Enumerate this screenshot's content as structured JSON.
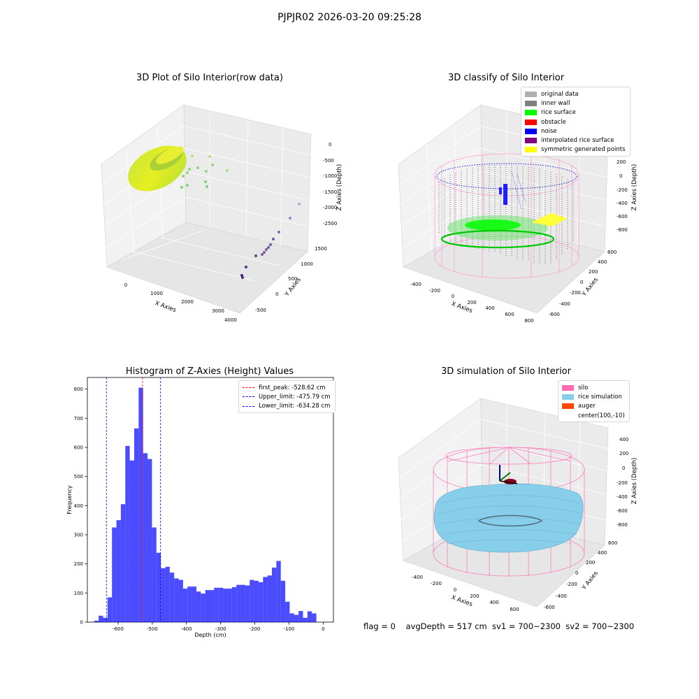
{
  "suptitle": "PJPJR02 2026-03-20 09:25:28",
  "panels": {
    "raw": {
      "title": "3D Plot of Silo Interior(row data)",
      "xlabel": "X Axies",
      "ylabel": "Y Axies",
      "zlabel": "Z Axies (Depth)",
      "x_ticks": [
        "0",
        "1000",
        "2000",
        "3000",
        "4000"
      ],
      "y_ticks": [
        "-500",
        "0",
        "500",
        "1000",
        "1500"
      ],
      "z_ticks": [
        "0",
        "-500",
        "-1000",
        "-1500",
        "-2000",
        "-2500"
      ]
    },
    "classify": {
      "title": "3D classify of Silo Interior",
      "xlabel": "X Axies",
      "ylabel": "Y Axies",
      "zlabel": "Z Axies (Depth)",
      "x_ticks": [
        "-400",
        "-200",
        "0",
        "200",
        "400",
        "600",
        "800"
      ],
      "y_ticks": [
        "-600",
        "-400",
        "-200",
        "0",
        "200",
        "400",
        "600"
      ],
      "z_ticks": [
        "200",
        "0",
        "-200",
        "-400",
        "-600",
        "-800"
      ],
      "legend": [
        {
          "label": "original data",
          "color": "#b0b0b0"
        },
        {
          "label": "inner wall",
          "color": "#808080"
        },
        {
          "label": "rice surface",
          "color": "#00ff00"
        },
        {
          "label": "obstacle",
          "color": "#ff0000"
        },
        {
          "label": "noise",
          "color": "#0000ff"
        },
        {
          "label": "interpolated rice surface",
          "color": "#800080"
        },
        {
          "label": "symmetric generated points",
          "color": "#ffff00"
        }
      ]
    },
    "simulation": {
      "title": "3D simulation of Silo Interior",
      "xlabel": "X Axies",
      "ylabel": "Y Axies",
      "zlabel": "Z Axies (Depth)",
      "x_ticks": [
        "-400",
        "-200",
        "0",
        "200",
        "400",
        "600"
      ],
      "y_ticks": [
        "-600",
        "-400",
        "-200",
        "0",
        "200",
        "400",
        "600"
      ],
      "z_ticks": [
        "400",
        "200",
        "0",
        "-200",
        "-400",
        "-600",
        "-800"
      ],
      "legend": [
        {
          "label": "silo",
          "color": "#ff69b4"
        },
        {
          "label": "rice simulation",
          "color": "#87ceeb"
        },
        {
          "label": "auger",
          "color": "#ff4500"
        },
        {
          "label": "center(100,-10)",
          "color": ""
        }
      ]
    }
  },
  "chart_data": {
    "type": "bar",
    "title": "Histogram of Z-Axies (Height) Values",
    "xlabel": "Depth (cm)",
    "ylabel": "Frequency",
    "xlim": [
      -690,
      30
    ],
    "ylim": [
      0,
      840
    ],
    "x_ticks": [
      -600,
      -500,
      -400,
      -300,
      -200,
      -100,
      0
    ],
    "y_ticks": [
      0,
      100,
      200,
      300,
      400,
      500,
      600,
      700,
      800
    ],
    "bar_color": "#0000ff",
    "bin_edges": [
      -670,
      -657,
      -644,
      -631,
      -618,
      -605,
      -592,
      -579,
      -566,
      -553,
      -540,
      -527,
      -514,
      -501,
      -488,
      -475,
      -462,
      -449,
      -436,
      -423,
      -410,
      -397,
      -384,
      -371,
      -358,
      -345,
      -332,
      -319,
      -306,
      -293,
      -280,
      -267,
      -254,
      -241,
      -228,
      -215,
      -202,
      -189,
      -176,
      -163,
      -150,
      -137,
      -124,
      -111,
      -98,
      -85,
      -72,
      -59,
      -46,
      -33,
      -20,
      -7,
      6
    ],
    "values": [
      5,
      22,
      15,
      85,
      325,
      350,
      405,
      605,
      555,
      665,
      805,
      580,
      560,
      325,
      238,
      185,
      190,
      170,
      150,
      145,
      115,
      122,
      122,
      105,
      98,
      110,
      110,
      118,
      118,
      115,
      115,
      120,
      128,
      128,
      126,
      145,
      142,
      137,
      155,
      160,
      187,
      210,
      142,
      70,
      30,
      25,
      38,
      15,
      37,
      30,
      0,
      0
    ],
    "vlines": [
      {
        "label": "first_peak: -528.62 cm",
        "x": -528.62,
        "color": "#ff0000"
      },
      {
        "label": "Upper_limit: -475.79 cm",
        "x": -475.79,
        "color": "#0000ff"
      },
      {
        "label": "Lower_limit: -634.28 cm",
        "x": -634.28,
        "color": "#0000ff"
      }
    ]
  },
  "footer": "flag = 0    avgDepth = 517 cm  sv1 = 700~2300  sv2 = 700~2300"
}
